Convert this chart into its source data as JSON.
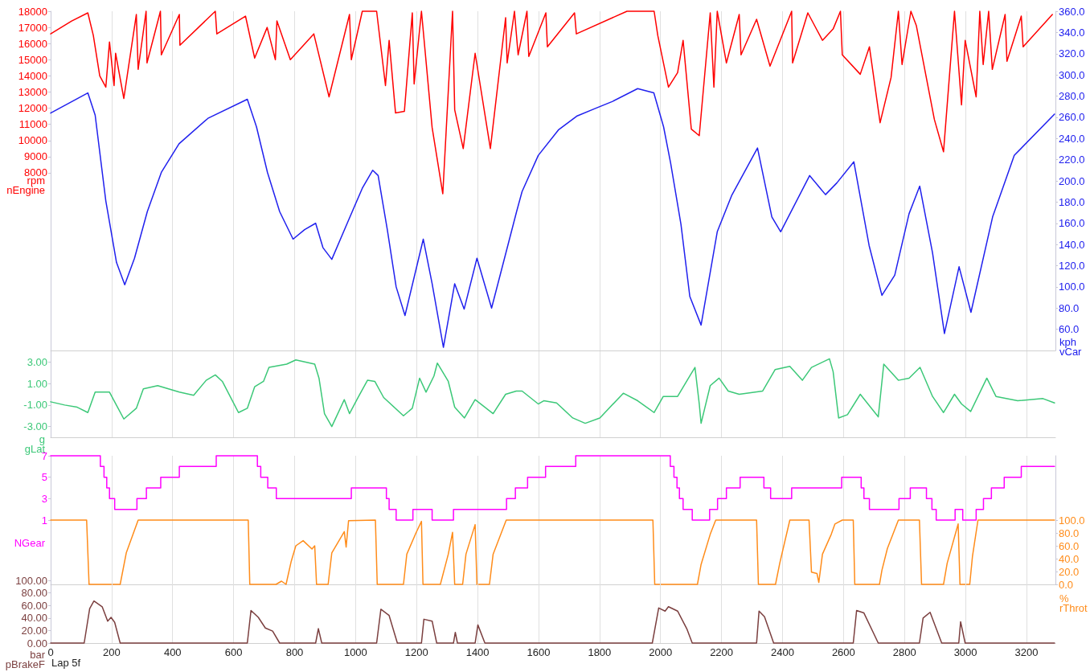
{
  "chart_data": [
    {
      "type": "line",
      "ylabel": "rpm\nnEngine",
      "y2label": "kph\nvCar",
      "xlim": [
        0,
        3295
      ],
      "xticks": [
        0,
        200,
        400,
        600,
        800,
        1000,
        1200,
        1400,
        1600,
        1800,
        2000,
        2200,
        2400,
        2600,
        2800,
        3000,
        3200
      ],
      "ylim": [
        -3000,
        18000
      ],
      "yticks": [
        8000,
        9000,
        10000,
        11000,
        12000,
        13000,
        14000,
        15000,
        16000,
        17000,
        18000
      ],
      "y2lim": [
        40,
        360
      ],
      "y2ticks": [
        {
          "value": 60,
          "label": "60.0"
        },
        {
          "value": 80,
          "label": "80.0"
        },
        {
          "value": 100,
          "label": "100.0"
        },
        {
          "value": 120,
          "label": "120.0"
        },
        {
          "value": 140,
          "label": "140.0"
        },
        {
          "value": 160,
          "label": "160.0"
        },
        {
          "value": 180,
          "label": "180.0"
        },
        {
          "value": 200,
          "label": "200.0"
        },
        {
          "value": 220,
          "label": "220.0"
        },
        {
          "value": 240,
          "label": "240.0"
        },
        {
          "value": 260,
          "label": "260.0"
        },
        {
          "value": 280,
          "label": "280.0"
        },
        {
          "value": 300,
          "label": "300.0"
        },
        {
          "value": 320,
          "label": "320.0"
        },
        {
          "value": 340,
          "label": "340.0"
        },
        {
          "value": 360,
          "label": "360.0"
        }
      ],
      "grid": "x",
      "tick_labels": "y",
      "series": [
        {
          "color": "#ff0000",
          "x": [
            0,
            69,
            122,
            140,
            161,
            181,
            193,
            208,
            213,
            240,
            251,
            281,
            287,
            313,
            316,
            360,
            363,
            422,
            424,
            540,
            545,
            639,
            669,
            710,
            737,
            742,
            786,
            863,
            913,
            980,
            986,
            1022,
            1069,
            1098,
            1110,
            1131,
            1160,
            1186,
            1192,
            1216,
            1251,
            1286,
            1318,
            1325,
            1353,
            1392,
            1442,
            1492,
            1497,
            1521,
            1533,
            1562,
            1568,
            1624,
            1629,
            1718,
            1724,
            1890,
            1979,
            1991,
            2026,
            2056,
            2074,
            2101,
            2127,
            2163,
            2175,
            2186,
            2216,
            2258,
            2264,
            2315,
            2359,
            2430,
            2433,
            2483,
            2531,
            2566,
            2590,
            2596,
            2655,
            2685,
            2720,
            2756,
            2780,
            2792,
            2821,
            2839,
            2898,
            2928,
            2964,
            2987,
            2999,
            3035,
            3047,
            3058,
            3076,
            3088,
            3130,
            3136,
            3183,
            3189,
            3285
          ],
          "values": [
            16600,
            17400,
            17900,
            16500,
            14000,
            13300,
            16100,
            13400,
            15400,
            12600,
            14000,
            17800,
            14400,
            18000,
            14800,
            18000,
            15300,
            17800,
            15900,
            18000,
            16600,
            17700,
            15100,
            17000,
            15000,
            17400,
            15000,
            16600,
            12700,
            17800,
            15000,
            18000,
            18000,
            13400,
            16200,
            11700,
            11800,
            17900,
            13500,
            18000,
            10800,
            6700,
            18000,
            11900,
            9500,
            15400,
            9500,
            17600,
            14800,
            18000,
            15300,
            18000,
            15200,
            17900,
            15800,
            17900,
            16600,
            18000,
            18000,
            16500,
            13300,
            14200,
            16200,
            10700,
            10300,
            17900,
            13300,
            18000,
            14800,
            17800,
            15300,
            17500,
            14600,
            18000,
            14800,
            17900,
            16200,
            16900,
            18000,
            15300,
            14100,
            15800,
            11100,
            13900,
            18000,
            14700,
            18000,
            17100,
            11300,
            9300,
            18000,
            12200,
            16200,
            12700,
            18000,
            14700,
            18000,
            14400,
            17800,
            14900,
            17700,
            15800,
            17800
          ]
        },
        {
          "color": "#2020ee",
          "axis": "y2",
          "x": [
            0,
            122,
            146,
            181,
            216,
            243,
            275,
            317,
            363,
            421,
            516,
            645,
            675,
            711,
            751,
            795,
            833,
            869,
            893,
            922,
            974,
            1022,
            1056,
            1074,
            1104,
            1133,
            1162,
            1222,
            1251,
            1288,
            1325,
            1356,
            1398,
            1446,
            1528,
            1546,
            1599,
            1665,
            1725,
            1783,
            1843,
            1925,
            1978,
            2010,
            2033,
            2067,
            2096,
            2133,
            2186,
            2233,
            2318,
            2365,
            2394,
            2489,
            2541,
            2578,
            2634,
            2684,
            2726,
            2768,
            2815,
            2850,
            2892,
            2931,
            2979,
            3018,
            3089,
            3160,
            3292
          ],
          "values": [
            264,
            283,
            262,
            181,
            123,
            102,
            127,
            171,
            208,
            235,
            259,
            277,
            251,
            208,
            171,
            145,
            154,
            160,
            137,
            126,
            161,
            193,
            210,
            205,
            154,
            100,
            73,
            145,
            103,
            43,
            103,
            79,
            127,
            80,
            171,
            190,
            224,
            248,
            261,
            268,
            275,
            287,
            283,
            251,
            217,
            159,
            91,
            64,
            152,
            186,
            231,
            166,
            152,
            205,
            187,
            198,
            218,
            139,
            92,
            111,
            169,
            195,
            132,
            56,
            119,
            76,
            166,
            224,
            263
          ]
        }
      ]
    },
    {
      "type": "line",
      "ylabel": "g\ngLat",
      "xlim": [
        0,
        3295
      ],
      "xticks": [
        0,
        200,
        400,
        600,
        800,
        1000,
        1200,
        1400,
        1600,
        1800,
        2000,
        2200,
        2400,
        2600,
        2800,
        3000,
        3200
      ],
      "ylim": [
        -4,
        4
      ],
      "yticks": [
        {
          "value": -3,
          "label": "-3.00"
        },
        {
          "value": -1,
          "label": "-1.00"
        },
        {
          "value": 1,
          "label": "1.00"
        },
        {
          "value": 3,
          "label": "3.00"
        }
      ],
      "grid": "x",
      "tick_labels": "y",
      "series": [
        {
          "color": "#3cc878",
          "x": [
            0,
            46,
            87,
            122,
            146,
            193,
            240,
            281,
            304,
            351,
            422,
            469,
            510,
            540,
            563,
            616,
            645,
            669,
            698,
            716,
            774,
            804,
            866,
            880,
            898,
            922,
            963,
            980,
            1010,
            1039,
            1063,
            1092,
            1157,
            1186,
            1210,
            1231,
            1257,
            1268,
            1304,
            1325,
            1357,
            1392,
            1451,
            1492,
            1527,
            1546,
            1599,
            1617,
            1659,
            1712,
            1753,
            1801,
            1878,
            1925,
            1979,
            2009,
            2056,
            2098,
            2113,
            2127,
            2133,
            2163,
            2192,
            2222,
            2258,
            2335,
            2376,
            2424,
            2465,
            2495,
            2554,
            2566,
            2584,
            2613,
            2655,
            2714,
            2732,
            2780,
            2815,
            2851,
            2892,
            2928,
            2964,
            2987,
            3017,
            3070,
            3100,
            3171,
            3254,
            3292
          ],
          "values": [
            -0.7,
            -1.0,
            -1.2,
            -1.7,
            0.2,
            0.2,
            -2.3,
            -1.3,
            0.5,
            0.8,
            0.2,
            -0.1,
            1.3,
            1.8,
            1.2,
            -1.7,
            -1.3,
            0.7,
            1.2,
            2.5,
            2.8,
            3.2,
            2.8,
            1.5,
            -1.8,
            -3.0,
            -0.5,
            -1.8,
            -0.2,
            1.3,
            1.2,
            -0.3,
            -2.0,
            -1.3,
            1.5,
            0.2,
            1.7,
            2.9,
            1.2,
            -1.2,
            -2.2,
            -0.5,
            -1.8,
            0.0,
            0.3,
            0.3,
            -0.9,
            -0.6,
            -0.8,
            -2.2,
            -2.7,
            -2.2,
            0.1,
            -0.6,
            -1.7,
            -0.2,
            -0.2,
            1.8,
            2.5,
            -0.9,
            -2.7,
            0.8,
            1.5,
            0.3,
            0.0,
            0.3,
            2.3,
            2.6,
            1.3,
            2.5,
            3.3,
            2.1,
            -2.2,
            -1.9,
            0.0,
            -2.1,
            2.8,
            1.3,
            1.5,
            2.5,
            -0.2,
            -1.7,
            0.0,
            -0.9,
            -1.6,
            1.5,
            -0.2,
            -0.6,
            -0.4,
            -0.8
          ]
        }
      ]
    },
    {
      "type": "line",
      "ylabel": "NGear",
      "y2label": "%\nrThrot",
      "xlim": [
        0,
        3295
      ],
      "xticks": [
        0,
        200,
        400,
        600,
        800,
        1000,
        1200,
        1400,
        1600,
        1800,
        2000,
        2200,
        2400,
        2600,
        2800,
        3000,
        3200
      ],
      "ylim": [
        -5,
        7
      ],
      "yticks": [
        1,
        3,
        5,
        7
      ],
      "y2lim": [
        0,
        200
      ],
      "y2ticks": [
        {
          "value": 0,
          "label": "0.0"
        },
        {
          "value": 20,
          "label": "20.0"
        },
        {
          "value": 40,
          "label": "40.0"
        },
        {
          "value": 60,
          "label": "60.0"
        },
        {
          "value": 80,
          "label": "80.0"
        },
        {
          "value": 100,
          "label": "100.0"
        }
      ],
      "grid": "x",
      "tick_labels": "y",
      "series": [
        {
          "type": "step",
          "color": "#ff00ff",
          "x": [
            0,
            163,
            175,
            184,
            193,
            210,
            283,
            314,
            361,
            422,
            543,
            678,
            689,
            712,
            740,
            986,
            1101,
            1110,
            1133,
            1188,
            1251,
            1321,
            1495,
            1524,
            1564,
            1623,
            1722,
            2032,
            2044,
            2054,
            2062,
            2074,
            2104,
            2161,
            2187,
            2216,
            2261,
            2339,
            2361,
            2430,
            2594,
            2658,
            2667,
            2685,
            2782,
            2819,
            2872,
            2890,
            2904,
            2966,
            2991,
            3035,
            3059,
            3085,
            3127,
            3183,
            3292
          ],
          "values": [
            7,
            6,
            5,
            4,
            3,
            2,
            3,
            4,
            5,
            6,
            7,
            6,
            5,
            4,
            3,
            4,
            3,
            2,
            1,
            2,
            1,
            2,
            3,
            4,
            5,
            6,
            7,
            6,
            5,
            4,
            3,
            2,
            1,
            2,
            3,
            4,
            5,
            4,
            3,
            4,
            5,
            4,
            3,
            2,
            3,
            4,
            3,
            2,
            1,
            2,
            1,
            2,
            3,
            4,
            5,
            6,
            6
          ]
        },
        {
          "type": "line",
          "color": "#ff8c1a",
          "axis": "y2",
          "x": [
            0,
            118,
            126,
            228,
            248,
            287,
            648,
            653,
            739,
            757,
            772,
            789,
            804,
            828,
            857,
            866,
            872,
            910,
            922,
            963,
            969,
            977,
            1065,
            1071,
            1157,
            1168,
            1198,
            1216,
            1221,
            1278,
            1304,
            1318,
            1325,
            1351,
            1362,
            1392,
            1398,
            1439,
            1451,
            1494,
            1975,
            1981,
            2121,
            2133,
            2163,
            2181,
            2315,
            2321,
            2377,
            2391,
            2424,
            2487,
            2495,
            2513,
            2519,
            2531,
            2560,
            2572,
            2596,
            2632,
            2637,
            2718,
            2726,
            2744,
            2780,
            2849,
            2856,
            2928,
            2940,
            2976,
            2982,
            3014,
            3023,
            3041,
            3292
          ],
          "values": [
            100,
            100,
            0,
            0,
            49,
            100,
            100,
            0,
            0,
            5,
            0,
            36,
            60,
            68,
            55,
            60,
            0,
            0,
            49,
            82,
            58,
            99,
            100,
            0,
            0,
            47,
            80,
            98,
            0,
            0,
            47,
            81,
            0,
            0,
            47,
            93,
            0,
            0,
            47,
            100,
            100,
            0,
            0,
            31,
            78,
            100,
            100,
            0,
            0,
            33,
            100,
            100,
            19,
            17,
            3,
            47,
            78,
            94,
            100,
            100,
            0,
            0,
            22,
            56,
            100,
            100,
            0,
            0,
            33,
            94,
            0,
            0,
            44,
            100,
            100
          ]
        }
      ]
    },
    {
      "type": "line",
      "ylabel": "bar\npBrakeF",
      "xlabel": "Lap 5f",
      "xlim": [
        0,
        3295
      ],
      "xticks": [
        0,
        200,
        400,
        600,
        800,
        1000,
        1200,
        1400,
        1600,
        1800,
        2000,
        2200,
        2400,
        2600,
        2800,
        3000,
        3200
      ],
      "ylim": [
        0,
        100
      ],
      "yticks": [
        {
          "value": 0,
          "label": "0.00"
        },
        {
          "value": 20,
          "label": "20.00"
        },
        {
          "value": 40,
          "label": "40.00"
        },
        {
          "value": 60,
          "label": "60.00"
        },
        {
          "value": 80,
          "label": "80.00"
        },
        {
          "value": 100,
          "label": "100.00"
        }
      ],
      "grid": "x",
      "series": [
        {
          "color": "#7b3f3f",
          "x": [
            0,
            110,
            128,
            142,
            169,
            187,
            198,
            210,
            228,
            645,
            657,
            681,
            704,
            728,
            751,
            869,
            878,
            889,
            1069,
            1083,
            1110,
            1137,
            1216,
            1224,
            1251,
            1266,
            1321,
            1327,
            1334,
            1392,
            1401,
            1424,
            1973,
            1994,
            2015,
            2026,
            2056,
            2086,
            2104,
            2315,
            2323,
            2341,
            2371,
            2632,
            2643,
            2667,
            2714,
            2849,
            2861,
            2884,
            2922,
            2978,
            2984,
            2999,
            3292
          ],
          "values": [
            0,
            0,
            55,
            67,
            58,
            35,
            41,
            33,
            0,
            0,
            52,
            41,
            24,
            19,
            0,
            0,
            23,
            0,
            0,
            54,
            44,
            0,
            0,
            38,
            35,
            0,
            0,
            17,
            0,
            0,
            29,
            0,
            0,
            56,
            51,
            58,
            51,
            23,
            0,
            0,
            51,
            42,
            0,
            0,
            52,
            48,
            0,
            0,
            40,
            49,
            0,
            0,
            34,
            0,
            0
          ]
        }
      ]
    }
  ]
}
